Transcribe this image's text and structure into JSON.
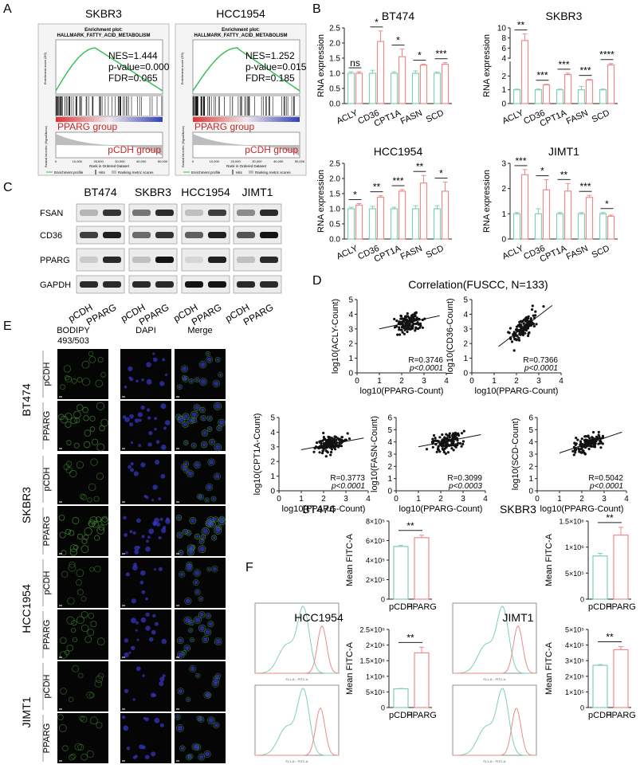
{
  "colors": {
    "pcdh": "#7fd0b4",
    "pparg": "#ee8a88",
    "gsea_line": "#2fbf4a",
    "dot": "#111111",
    "bodipy": "#3f8a2f",
    "dapi": "#3838c8"
  },
  "panels": {
    "A": "A",
    "B": "B",
    "C": "C",
    "D": "D",
    "E": "E",
    "F": "F"
  },
  "gsea": [
    {
      "cell": "SKBR3",
      "plot_title": "Enrichment plot:",
      "set": "HALLMARK_FATTY_ACID_METABOLISM",
      "nes": "NES=1.444",
      "pval": "p-value=0.000",
      "fdr": "FDR=0.065",
      "group_up": "PPARG group",
      "group_down": "pCDH group",
      "ylab1": "Enrichment score (ES)",
      "ylab2": "Ranked list metric (Signal2Noise)",
      "xlab": "Rank in Ordered Dataset",
      "ticks": [
        "0",
        "10,000",
        "20,000",
        "30,000",
        "40,000",
        "50,000"
      ],
      "legend": [
        "Enrichment profile",
        "Hits",
        "Ranking metric scores"
      ]
    },
    {
      "cell": "HCC1954",
      "plot_title": "Enrichment plot:",
      "set": "HALLMARK_FATTY_ACID_METABOLISM",
      "nes": "NES=1.252",
      "pval": "p-value=0.015",
      "fdr": "FDR=0.185",
      "group_up": "PPARG group",
      "group_down": "pCDH group",
      "ylab1": "Enrichment score (ES)",
      "ylab2": "Ranked list metric (Signal2Noise)",
      "xlab": "Rank in Ordered Dataset",
      "ticks": [
        "0",
        "10,000",
        "20,000",
        "30,000",
        "40,000",
        "50,000"
      ],
      "legend": [
        "Enrichment profile",
        "Hits",
        "Ranking metric scores"
      ]
    }
  ],
  "western": {
    "cells": [
      "BT474",
      "SKBR3",
      "HCC1954",
      "JIMT1"
    ],
    "proteins": [
      "FSAN",
      "CD36",
      "PPARG",
      "GAPDH"
    ],
    "groups": [
      "pCDH",
      "PPARG"
    ],
    "band_intensity": [
      [
        [
          0.25,
          0.85
        ],
        [
          0.55,
          0.9
        ],
        [
          0.2,
          0.8
        ],
        [
          0.45,
          0.9
        ]
      ],
      [
        [
          0.8,
          0.95
        ],
        [
          0.6,
          0.85
        ],
        [
          0.65,
          0.95
        ],
        [
          0.7,
          1.0
        ]
      ],
      [
        [
          0.15,
          0.9
        ],
        [
          0.2,
          1.0
        ],
        [
          0.1,
          0.95
        ],
        [
          0.2,
          0.9
        ]
      ],
      [
        [
          0.9,
          0.9
        ],
        [
          0.9,
          0.9
        ],
        [
          1.0,
          1.0
        ],
        [
          0.9,
          0.9
        ]
      ]
    ]
  },
  "imaging": {
    "channels": [
      "BODIPY\n493/503",
      "DAPI",
      "Merge"
    ],
    "cells": [
      "BT474",
      "SKBR3",
      "HCC1954",
      "JIMT1"
    ],
    "groups": [
      "pCDH",
      "PPARG"
    ],
    "density": [
      [
        0.3,
        0.7
      ],
      [
        0.25,
        0.8
      ],
      [
        0.2,
        0.45
      ],
      [
        0.15,
        0.3
      ]
    ]
  },
  "chart_data": [
    {
      "id": "B-BT474",
      "type": "bar",
      "title": "BT474",
      "ylabel": "RNA expression",
      "categories": [
        "ACLY",
        "CD36",
        "CPT1A",
        "FASN",
        "SCD"
      ],
      "ylim": [
        0,
        2.5
      ],
      "yticks": [
        "0.0",
        "0.5",
        "1.0",
        "1.5",
        "2.0",
        "2.5"
      ],
      "series": [
        {
          "name": "pCDH",
          "values": [
            1.0,
            1.0,
            1.0,
            1.0,
            1.0
          ],
          "err": [
            0.05,
            0.1,
            0.05,
            0.08,
            0.04
          ]
        },
        {
          "name": "PPARG",
          "values": [
            1.0,
            2.05,
            1.55,
            1.27,
            1.3
          ],
          "err": [
            0.05,
            0.35,
            0.25,
            0.03,
            0.05
          ]
        }
      ],
      "significance": [
        "ns",
        "*",
        "*",
        "*",
        "***"
      ]
    },
    {
      "id": "B-SKBR3",
      "type": "bar",
      "title": "SKBR3",
      "ylabel": "RNA expression",
      "categories": [
        "ACLY",
        "CD36",
        "CPT1A",
        "FASN",
        "SCD"
      ],
      "broken_axis": true,
      "yticks": [
        "0",
        "1",
        "2",
        "4",
        "6",
        "8",
        "10"
      ],
      "series": [
        {
          "name": "pCDH",
          "values": [
            1.0,
            1.0,
            1.0,
            1.0,
            1.0
          ],
          "err": [
            0.05,
            0.05,
            0.05,
            0.25,
            0.05
          ]
        },
        {
          "name": "PPARG",
          "values": [
            7.5,
            1.35,
            2.1,
            1.7,
            2.8
          ],
          "err": [
            1.3,
            0.05,
            0.1,
            0.05,
            0.1
          ]
        }
      ],
      "significance": [
        "**",
        "***",
        "***",
        "***",
        "****"
      ]
    },
    {
      "id": "B-HCC1954",
      "type": "bar",
      "title": "HCC1954",
      "ylabel": "RNA expression",
      "categories": [
        "ACLY",
        "CD36",
        "CPT1A",
        "FASN",
        "SCD"
      ],
      "ylim": [
        0,
        2.5
      ],
      "yticks": [
        "0.0",
        "0.5",
        "1.0",
        "1.5",
        "2.0",
        "2.5"
      ],
      "series": [
        {
          "name": "pCDH",
          "values": [
            1.0,
            1.0,
            1.0,
            1.0,
            1.0
          ],
          "err": [
            0.05,
            0.08,
            0.05,
            0.1,
            0.1
          ]
        },
        {
          "name": "PPARG",
          "values": [
            1.12,
            1.38,
            1.58,
            1.85,
            1.58
          ],
          "err": [
            0.05,
            0.05,
            0.05,
            0.25,
            0.3
          ]
        }
      ],
      "significance": [
        "*",
        "**",
        "***",
        "**",
        "*"
      ]
    },
    {
      "id": "B-JIMT1",
      "type": "bar",
      "title": "JIMT1",
      "ylabel": "RNA expression",
      "categories": [
        "ACLY",
        "CD36",
        "CPT1A",
        "FASN",
        "SCD"
      ],
      "ylim": [
        0,
        3
      ],
      "yticks": [
        "0",
        "1",
        "2",
        "3"
      ],
      "series": [
        {
          "name": "pCDH",
          "values": [
            1.0,
            1.0,
            1.0,
            1.0,
            1.0
          ],
          "err": [
            0.05,
            0.2,
            0.05,
            0.05,
            0.05
          ]
        },
        {
          "name": "PPARG",
          "values": [
            2.55,
            1.95,
            1.9,
            1.65,
            0.9
          ],
          "err": [
            0.2,
            0.4,
            0.3,
            0.08,
            0.05
          ]
        }
      ],
      "significance": [
        "***",
        "*",
        "**",
        "***",
        "*"
      ]
    },
    {
      "id": "D-ACLY",
      "type": "scatter",
      "ylabel": "log10(ACLY-Count)",
      "xlabel": "log10(PPARG-Count)",
      "xlim": [
        0,
        4
      ],
      "ylim": [
        0,
        5
      ],
      "xticks": [
        "0",
        "1",
        "2",
        "3",
        "4"
      ],
      "yticks": [
        "0",
        "1",
        "2",
        "3",
        "4",
        "5"
      ],
      "stat_r": "R=0.3746",
      "stat_p": "p<0.0001",
      "fit": [
        [
          1.0,
          3.0
        ],
        [
          3.7,
          3.9
        ]
      ],
      "center": [
        2.3,
        3.5
      ],
      "spread": [
        0.45,
        0.45
      ]
    },
    {
      "id": "D-CD36",
      "type": "scatter",
      "ylabel": "log10(CD36-Count)",
      "xlabel": "log10(PPARG-Count)",
      "xlim": [
        0,
        4
      ],
      "ylim": [
        0,
        5
      ],
      "xticks": [
        "0",
        "1",
        "2",
        "3",
        "4"
      ],
      "yticks": [
        "0",
        "1",
        "2",
        "3",
        "4",
        "5"
      ],
      "stat_r": "R=0.7366",
      "stat_p": "p<0.0001",
      "fit": [
        [
          1.2,
          1.8
        ],
        [
          3.6,
          4.6
        ]
      ],
      "center": [
        2.3,
        2.7
      ],
      "spread": [
        0.45,
        0.55
      ]
    },
    {
      "id": "D-CPT1A",
      "type": "scatter",
      "ylabel": "log10(CPT1A-Count)",
      "xlabel": "log10(PPARG-Count)",
      "xlim": [
        0,
        4
      ],
      "ylim": [
        0,
        5
      ],
      "xticks": [
        "0",
        "1",
        "2",
        "3",
        "4"
      ],
      "yticks": [
        "0",
        "1",
        "2",
        "3",
        "4",
        "5"
      ],
      "stat_r": "R=0.3773",
      "stat_p": "p<0.0001",
      "fit": [
        [
          1.0,
          2.8
        ],
        [
          3.8,
          3.6
        ]
      ],
      "center": [
        2.3,
        3.2
      ],
      "spread": [
        0.45,
        0.4
      ]
    },
    {
      "id": "D-FASN",
      "type": "scatter",
      "ylabel": "log10(FASN-Count)",
      "xlabel": "log10(PPARG-Count)",
      "xlim": [
        0,
        4
      ],
      "ylim": [
        0,
        6
      ],
      "xticks": [
        "0",
        "1",
        "2",
        "3",
        "4"
      ],
      "yticks": [
        "0",
        "1",
        "2",
        "3",
        "4",
        "5",
        "6"
      ],
      "stat_r": "R=0.3099",
      "stat_p": "p<0.0003",
      "fit": [
        [
          1.0,
          3.6
        ],
        [
          3.8,
          4.6
        ]
      ],
      "center": [
        2.3,
        4.0
      ],
      "spread": [
        0.45,
        0.55
      ]
    },
    {
      "id": "D-SCD",
      "type": "scatter",
      "ylabel": "log10(SCD-Count)",
      "xlabel": "log10(PPARG-Count)",
      "xlim": [
        0,
        4
      ],
      "ylim": [
        0,
        6
      ],
      "xticks": [
        "0",
        "1",
        "2",
        "3",
        "4"
      ],
      "yticks": [
        "0",
        "1",
        "2",
        "3",
        "4",
        "5",
        "6"
      ],
      "stat_r": "R=0.5042",
      "stat_p": "p<0.0001",
      "fit": [
        [
          1.0,
          3.1
        ],
        [
          3.8,
          4.8
        ]
      ],
      "center": [
        2.3,
        4.0
      ],
      "spread": [
        0.45,
        0.45
      ]
    },
    {
      "id": "F-BT474",
      "type": "bar",
      "title": "BT474",
      "ylabel": "Mean FITC-A",
      "categories": [
        "pCDH",
        "PPARG"
      ],
      "ylim": [
        0,
        8
      ],
      "yticks": [
        "0",
        "2×10⁵",
        "4×10⁵",
        "6×10⁵",
        "8×10⁵"
      ],
      "values": [
        5.4,
        6.3
      ],
      "err": [
        0.1,
        0.25
      ],
      "significance": "**"
    },
    {
      "id": "F-SKBR3",
      "type": "bar",
      "title": "SKBR3",
      "ylabel": "Mean FITC-A",
      "categories": [
        "pCDH",
        "PPARG"
      ],
      "ylim": [
        0,
        15
      ],
      "yticks": [
        "0",
        "5×10⁵",
        "1×10⁶",
        "1.5×10⁶"
      ],
      "values": [
        8.3,
        12.3
      ],
      "err": [
        0.5,
        1.5
      ],
      "significance": "**"
    },
    {
      "id": "F-HCC1954",
      "type": "bar",
      "title": "HCC1954",
      "ylabel": "Mean FITC-A",
      "categories": [
        "pCDH",
        "PPARG"
      ],
      "ylim": [
        0,
        25
      ],
      "yticks": [
        "0",
        "5×10⁵",
        "1×10⁶",
        "1.5×10⁶",
        "2×10⁶",
        "2.5×10⁶"
      ],
      "values": [
        6.0,
        17.5
      ],
      "err": [
        0.1,
        1.8
      ],
      "significance": "**"
    },
    {
      "id": "F-JIMT1",
      "type": "bar",
      "title": "JIMT1",
      "ylabel": "Mean FITC-A",
      "categories": [
        "pCDH",
        "PPARG"
      ],
      "ylim": [
        0,
        5
      ],
      "yticks": [
        "0",
        "1×10⁵",
        "2×10⁵",
        "3×10⁵",
        "4×10⁵",
        "5×10⁵"
      ],
      "values": [
        2.7,
        3.7
      ],
      "err": [
        0.05,
        0.2
      ],
      "significance": "**"
    }
  ],
  "corr_title": "Correlation(FUSCC, N=133)",
  "flow": {
    "xlabel": "FL1-A :: FITC-A"
  }
}
